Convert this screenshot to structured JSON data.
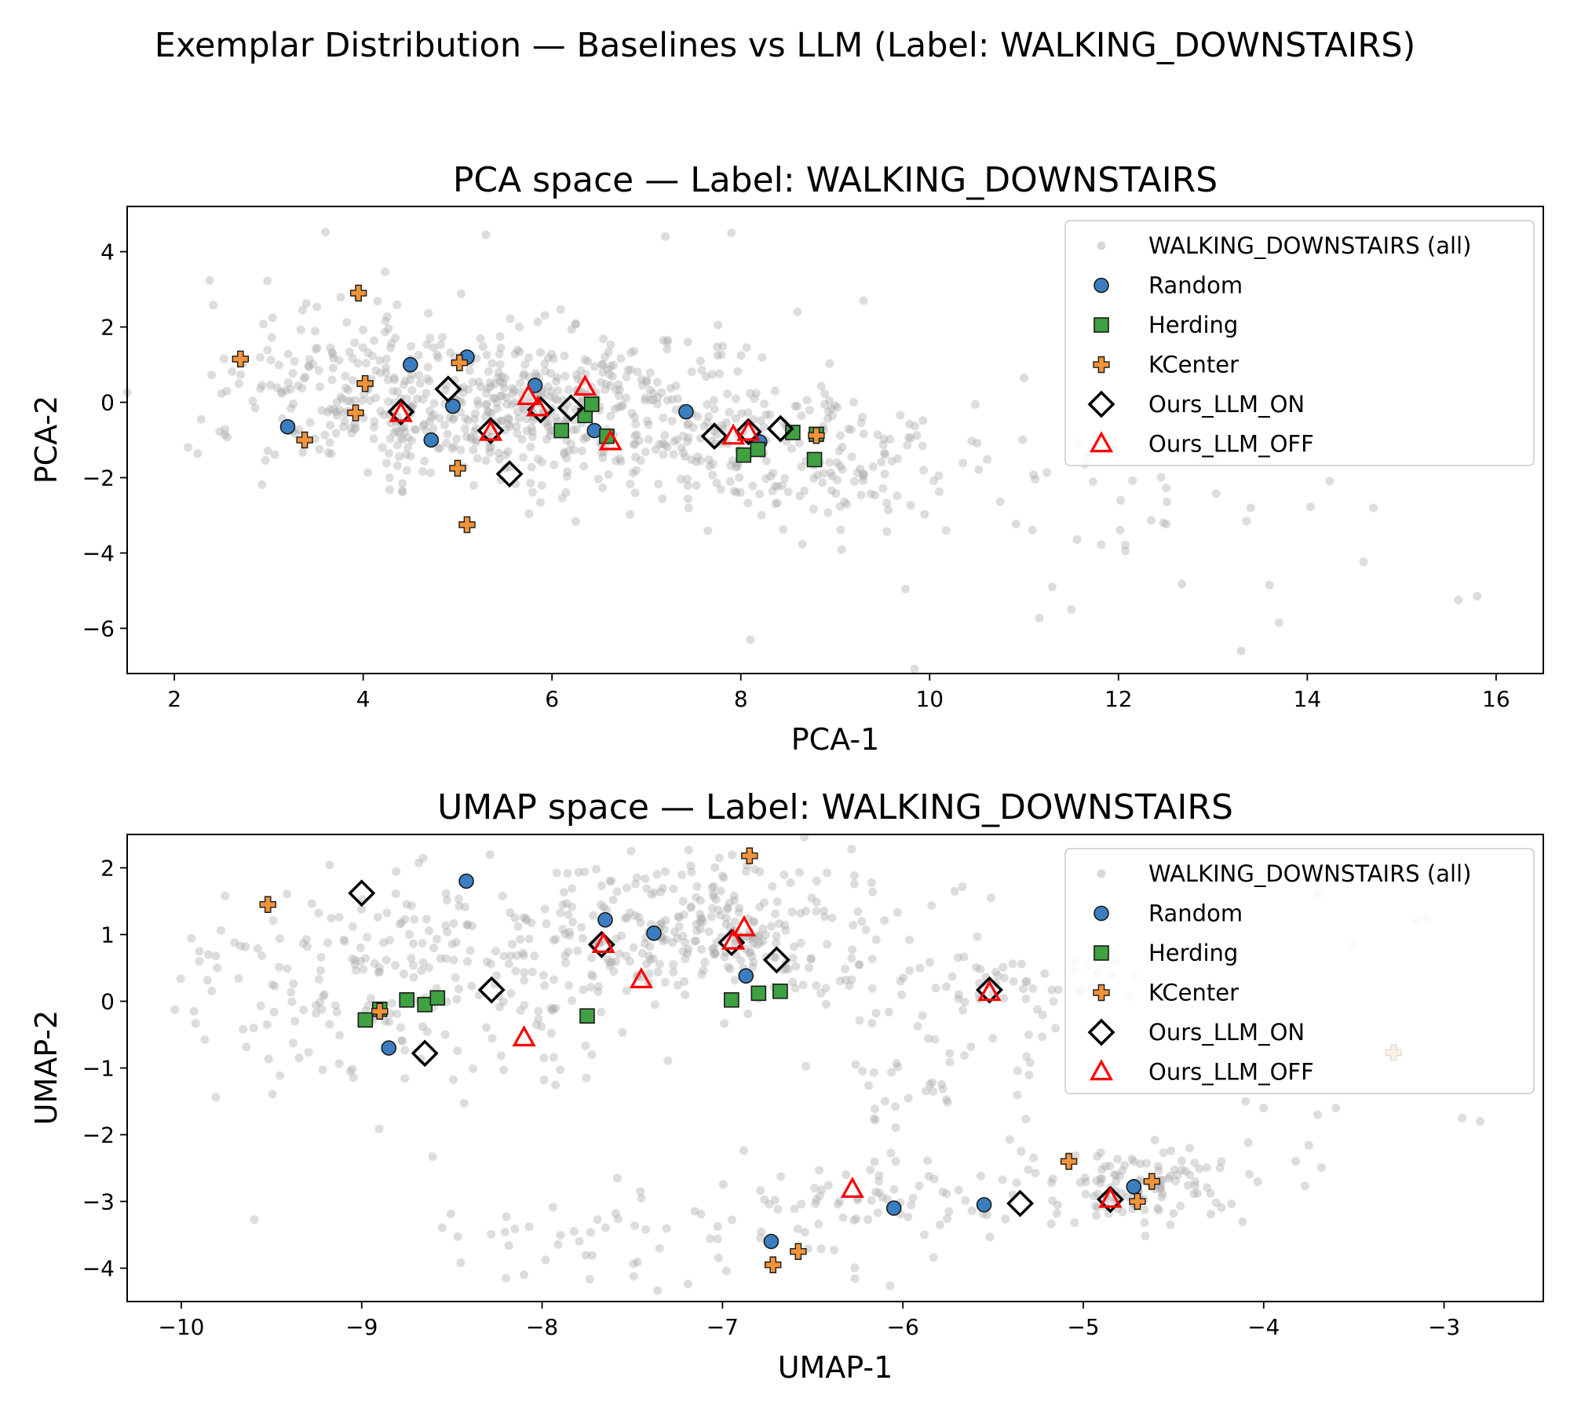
{
  "figure": {
    "suptitle": "Exemplar Distribution — Baselines vs LLM (Label: WALKING_DOWNSTAIRS)"
  },
  "legend": [
    {
      "key": "all",
      "label": "WALKING_DOWNSTAIRS (all)",
      "marker": "circle",
      "fill": "#a9a9a9",
      "stroke": "none"
    },
    {
      "key": "random",
      "label": "Random",
      "marker": "circle",
      "fill": "#3a7ebf",
      "stroke": "#1a1a1a"
    },
    {
      "key": "herding",
      "label": "Herding",
      "marker": "square",
      "fill": "#3fa142",
      "stroke": "#1a1a1a"
    },
    {
      "key": "kcenter",
      "label": "KCenter",
      "marker": "plus",
      "fill": "#f0933a",
      "stroke": "#1a1a1a"
    },
    {
      "key": "llm_on",
      "label": "Ours_LLM_ON",
      "marker": "diamond",
      "fill": "none",
      "stroke": "#000000"
    },
    {
      "key": "llm_off",
      "label": "Ours_LLM_OFF",
      "marker": "triangle",
      "fill": "none",
      "stroke": "#ff0000"
    }
  ],
  "chart_data": [
    {
      "type": "scatter",
      "title": "PCA space — Label: WALKING_DOWNSTAIRS",
      "xlabel": "PCA-1",
      "ylabel": "PCA-2",
      "xlim": [
        1.5,
        16.5
      ],
      "ylim": [
        -7.2,
        5.2
      ],
      "xticks": [
        2,
        4,
        6,
        8,
        10,
        12,
        14,
        16
      ],
      "yticks": [
        4,
        2,
        0,
        -2,
        -4,
        -6
      ],
      "xtick_labels": [
        "2",
        "4",
        "6",
        "8",
        "10",
        "12",
        "14",
        "16"
      ],
      "ytick_labels": [
        "4",
        "2",
        "0",
        "−2",
        "−4",
        "−6"
      ],
      "legend_position": "upper-right",
      "background_cloud": {
        "clusters": [
          {
            "cx": 5.7,
            "cy": -0.1,
            "sx": 1.2,
            "sy": 1.0,
            "n": 520
          },
          {
            "cx": 8.5,
            "cy": -1.3,
            "sx": 1.2,
            "sy": 1.0,
            "n": 200
          },
          {
            "cx": 3.6,
            "cy": 0.4,
            "sx": 0.7,
            "sy": 1.3,
            "n": 120
          },
          {
            "cx": 11.8,
            "cy": -3.2,
            "sx": 1.5,
            "sy": 1.3,
            "n": 40
          }
        ],
        "extra": [
          [
            15.6,
            -5.25
          ],
          [
            15.8,
            -5.15
          ],
          [
            13.3,
            -6.6
          ],
          [
            13.7,
            -5.85
          ],
          [
            13.6,
            -4.85
          ],
          [
            11.5,
            -5.5
          ],
          [
            11.3,
            -4.9
          ],
          [
            8.1,
            -6.3
          ],
          [
            5.3,
            4.45
          ],
          [
            7.2,
            4.4
          ],
          [
            7.9,
            4.5
          ],
          [
            9.3,
            2.7
          ],
          [
            8.6,
            2.4
          ],
          [
            11.0,
            0.65
          ],
          [
            13.4,
            -2.8
          ],
          [
            14.7,
            -2.8
          ]
        ]
      },
      "series": [
        {
          "name": "Random",
          "key": "random",
          "points": [
            [
              3.2,
              -0.65
            ],
            [
              4.5,
              1.0
            ],
            [
              5.1,
              1.2
            ],
            [
              4.95,
              -0.1
            ],
            [
              4.72,
              -1.0
            ],
            [
              5.82,
              0.45
            ],
            [
              6.45,
              -0.75
            ],
            [
              7.42,
              -0.25
            ],
            [
              8.2,
              -1.05
            ]
          ]
        },
        {
          "name": "Herding",
          "key": "herding",
          "points": [
            [
              6.1,
              -0.75
            ],
            [
              6.35,
              -0.35
            ],
            [
              6.42,
              -0.05
            ],
            [
              6.58,
              -0.9
            ],
            [
              8.03,
              -1.4
            ],
            [
              8.18,
              -1.25
            ],
            [
              8.55,
              -0.8
            ],
            [
              8.78,
              -1.52
            ],
            [
              8.8,
              -0.85
            ]
          ]
        },
        {
          "name": "KCenter",
          "key": "kcenter",
          "points": [
            [
              2.7,
              1.15
            ],
            [
              3.95,
              2.9
            ],
            [
              4.02,
              0.5
            ],
            [
              3.92,
              -0.28
            ],
            [
              3.38,
              -1.0
            ],
            [
              5.02,
              1.05
            ],
            [
              5.0,
              -1.75
            ],
            [
              5.1,
              -3.25
            ],
            [
              8.8,
              -0.88
            ]
          ]
        },
        {
          "name": "Ours_LLM_ON",
          "key": "llm_on",
          "points": [
            [
              4.4,
              -0.25
            ],
            [
              4.9,
              0.35
            ],
            [
              5.35,
              -0.75
            ],
            [
              5.55,
              -1.9
            ],
            [
              5.88,
              -0.2
            ],
            [
              6.2,
              -0.15
            ],
            [
              7.72,
              -0.9
            ],
            [
              8.08,
              -0.78
            ],
            [
              8.42,
              -0.7
            ]
          ]
        },
        {
          "name": "Ours_LLM_OFF",
          "key": "llm_off",
          "points": [
            [
              4.4,
              -0.3
            ],
            [
              5.35,
              -0.8
            ],
            [
              5.75,
              0.15
            ],
            [
              5.85,
              -0.15
            ],
            [
              6.35,
              0.4
            ],
            [
              6.62,
              -1.05
            ],
            [
              7.92,
              -0.9
            ],
            [
              8.08,
              -0.8
            ]
          ]
        }
      ]
    },
    {
      "type": "scatter",
      "title": "UMAP space — Label: WALKING_DOWNSTAIRS",
      "xlabel": "UMAP-1",
      "ylabel": "UMAP-2",
      "xlim": [
        -10.3,
        -2.45
      ],
      "ylim": [
        -4.5,
        2.5
      ],
      "xticks": [
        -10,
        -9,
        -8,
        -7,
        -6,
        -5,
        -4,
        -3
      ],
      "yticks": [
        2,
        1,
        0,
        -1,
        -2,
        -3,
        -4
      ],
      "xtick_labels": [
        "−10",
        "−9",
        "−8",
        "−7",
        "−6",
        "−5",
        "−4",
        "−3"
      ],
      "ytick_labels": [
        "2",
        "1",
        "0",
        "−1",
        "−2",
        "−3",
        "−4"
      ],
      "legend_position": "upper-right",
      "background_cloud": {
        "clusters": [
          {
            "cx": -7.2,
            "cy": 1.1,
            "sx": 0.6,
            "sy": 0.55,
            "n": 330
          },
          {
            "cx": -9.1,
            "cy": 0.3,
            "sx": 0.45,
            "sy": 0.7,
            "n": 150
          },
          {
            "cx": -8.2,
            "cy": 0.2,
            "sx": 0.35,
            "sy": 0.8,
            "n": 60
          },
          {
            "cx": -5.5,
            "cy": 0.2,
            "sx": 0.4,
            "sy": 0.25,
            "n": 60
          },
          {
            "cx": -4.7,
            "cy": -2.75,
            "sx": 0.35,
            "sy": 0.28,
            "n": 130
          },
          {
            "cx": -6.2,
            "cy": -2.9,
            "sx": 0.35,
            "sy": 0.35,
            "n": 60
          },
          {
            "cx": -7.3,
            "cy": -3.6,
            "sx": 0.7,
            "sy": 0.35,
            "n": 60
          },
          {
            "cx": -5.9,
            "cy": -1.1,
            "sx": 0.4,
            "sy": 0.6,
            "n": 45
          }
        ],
        "extra": [
          [
            -9.9,
            0.75
          ],
          [
            -9.85,
            0.7
          ],
          [
            -9.9,
            0.6
          ],
          [
            -9.8,
            0.5
          ],
          [
            -3.1,
            1.25
          ],
          [
            -3.15,
            1.2
          ],
          [
            -2.8,
            -1.8
          ],
          [
            -2.9,
            -1.75
          ],
          [
            -3.6,
            -1.6
          ],
          [
            -3.7,
            -1.7
          ],
          [
            -4.1,
            -1.5
          ],
          [
            -4.0,
            -1.6
          ],
          [
            -3.7,
            1.6
          ],
          [
            -3.5,
            0.85
          ],
          [
            -8.2,
            -4.15
          ],
          [
            -8.1,
            -4.1
          ]
        ]
      },
      "series": [
        {
          "name": "Random",
          "key": "random",
          "points": [
            [
              -8.42,
              1.8
            ],
            [
              -7.65,
              1.22
            ],
            [
              -7.38,
              1.02
            ],
            [
              -6.87,
              0.38
            ],
            [
              -8.85,
              -0.7
            ],
            [
              -6.73,
              -3.6
            ],
            [
              -6.05,
              -3.1
            ],
            [
              -5.55,
              -3.05
            ],
            [
              -4.72,
              -2.78
            ]
          ]
        },
        {
          "name": "Herding",
          "key": "herding",
          "points": [
            [
              -8.98,
              -0.28
            ],
            [
              -8.75,
              0.02
            ],
            [
              -8.65,
              -0.05
            ],
            [
              -8.58,
              0.05
            ],
            [
              -7.75,
              -0.22
            ],
            [
              -6.95,
              0.02
            ],
            [
              -6.8,
              0.12
            ],
            [
              -6.68,
              0.15
            ],
            [
              -8.9,
              -0.12
            ]
          ]
        },
        {
          "name": "KCenter",
          "key": "kcenter",
          "points": [
            [
              -9.52,
              1.45
            ],
            [
              -8.9,
              -0.15
            ],
            [
              -6.85,
              2.18
            ],
            [
              -6.72,
              -3.95
            ],
            [
              -6.58,
              -3.75
            ],
            [
              -5.08,
              -2.4
            ],
            [
              -4.7,
              -3.0
            ],
            [
              -4.62,
              -2.7
            ],
            [
              -3.28,
              -0.77
            ]
          ]
        },
        {
          "name": "Ours_LLM_ON",
          "key": "llm_on",
          "points": [
            [
              -9.0,
              1.62
            ],
            [
              -8.28,
              0.17
            ],
            [
              -8.65,
              -0.78
            ],
            [
              -7.67,
              0.85
            ],
            [
              -6.95,
              0.88
            ],
            [
              -6.7,
              0.62
            ],
            [
              -5.52,
              0.17
            ],
            [
              -5.35,
              -3.03
            ],
            [
              -4.85,
              -2.97
            ]
          ]
        },
        {
          "name": "Ours_LLM_OFF",
          "key": "llm_off",
          "points": [
            [
              -8.1,
              -0.55
            ],
            [
              -7.66,
              0.85
            ],
            [
              -7.45,
              0.32
            ],
            [
              -6.94,
              0.9
            ],
            [
              -6.88,
              1.1
            ],
            [
              -6.28,
              -2.82
            ],
            [
              -5.52,
              0.13
            ],
            [
              -4.85,
              -2.97
            ]
          ]
        }
      ]
    }
  ]
}
